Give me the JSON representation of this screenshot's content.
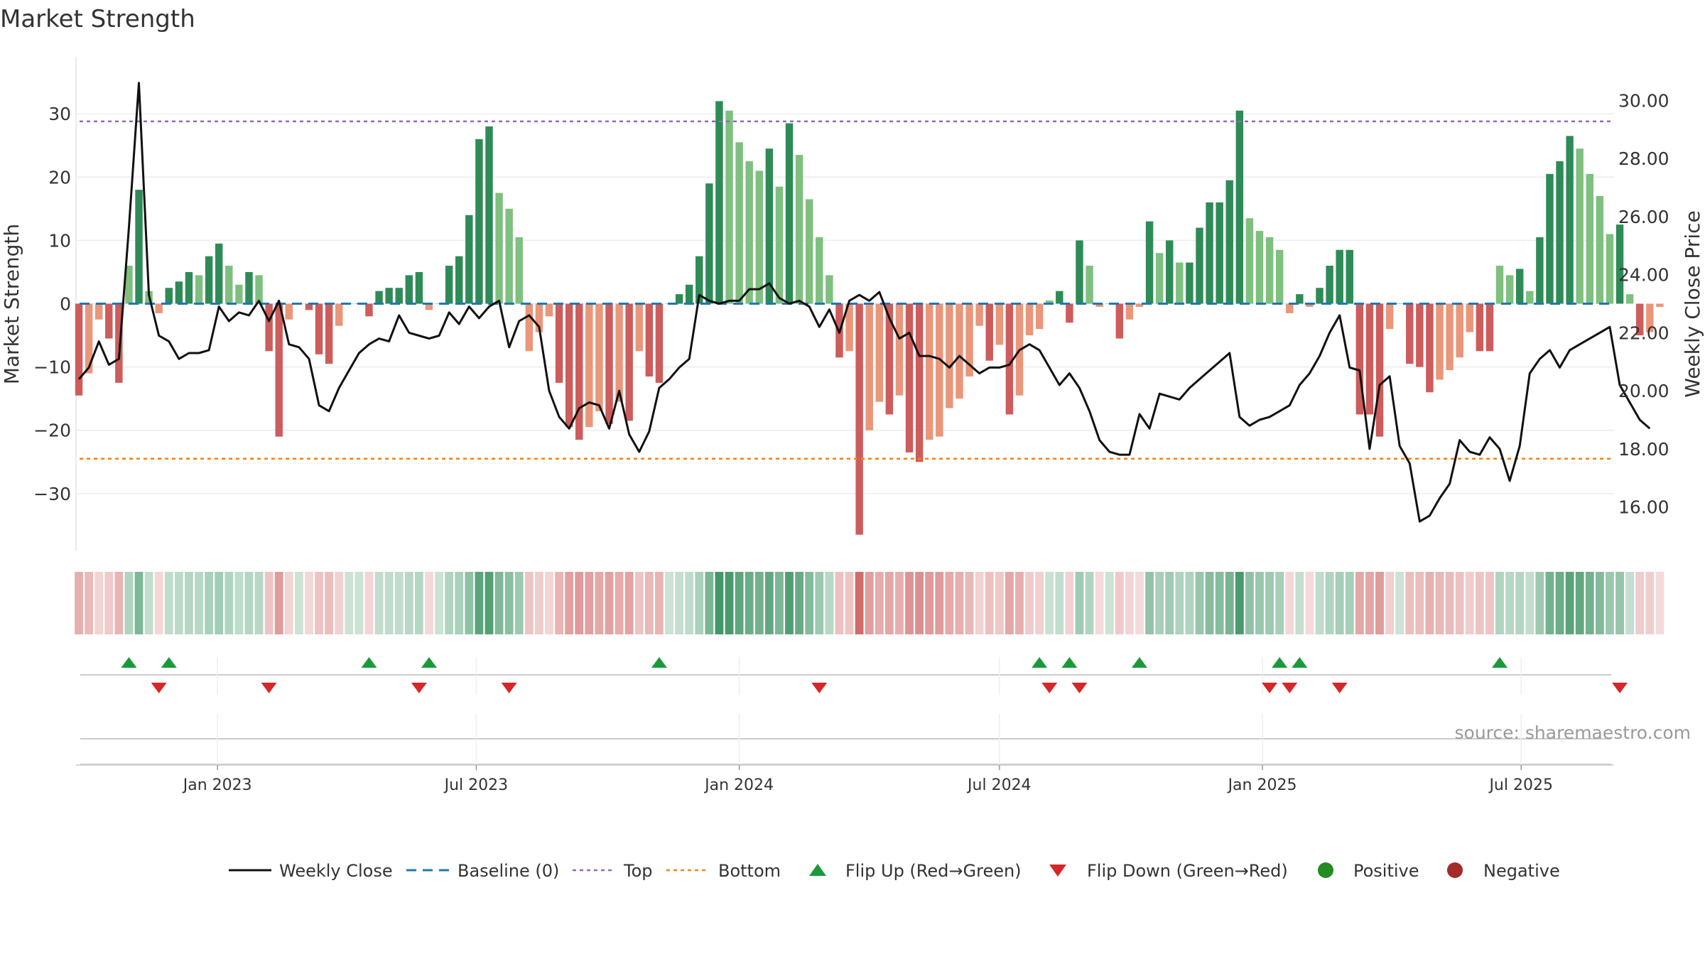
{
  "chart_data": {
    "type": "bar",
    "title": "Market Strength",
    "ylabel_left": "Market Strength",
    "ylabel_right": "Weekly Close Price",
    "ylim_left": [
      -39,
      39
    ],
    "ylim_right": [
      14.5,
      31.5
    ],
    "yticks_left": [
      "30",
      "20",
      "10",
      "0",
      "−10",
      "−20",
      "−30"
    ],
    "ytick_values_left": [
      30,
      20,
      10,
      0,
      -10,
      -20,
      -30
    ],
    "yticks_right": [
      "30.00",
      "28.00",
      "26.00",
      "24.00",
      "22.00",
      "20.00",
      "18.00",
      "16.00"
    ],
    "ytick_values_right": [
      30,
      28,
      26,
      24,
      22,
      20,
      18,
      16
    ],
    "x_start": "2022-09-26",
    "x_range_days": [
      -2,
      1074
    ],
    "week_step_days": 7,
    "x_tick_labels": [
      "Jan 2023",
      "Jul 2023",
      "Jan 2024",
      "Jul 2024",
      "Jan 2025",
      "Jul 2025"
    ],
    "x_tick_dates": [
      "2023-01-01",
      "2023-07-01",
      "2024-01-01",
      "2024-07-01",
      "2025-01-01",
      "2025-07-01"
    ],
    "reference_lines": {
      "baseline": 0,
      "top": 28.8,
      "bottom": -24.5
    },
    "strength": [
      -14.5,
      -11,
      -2.5,
      -5.5,
      -12.5,
      6,
      18,
      2,
      -1.5,
      2.5,
      3.5,
      5,
      4.5,
      7.5,
      9.5,
      6,
      3,
      5,
      4.5,
      -7.5,
      -21,
      -2.5,
      0,
      -1,
      -8,
      -9.5,
      -3.5,
      0,
      0,
      -2,
      2,
      2.5,
      2.5,
      4.5,
      5,
      -1,
      0,
      6,
      7.5,
      14,
      26,
      28,
      17.5,
      15,
      10.5,
      -7.5,
      -4.5,
      -2,
      -12.5,
      -19.5,
      -21.5,
      -19.5,
      -17,
      -19,
      -15.5,
      -18.5,
      -7.5,
      -11.5,
      -12.5,
      0,
      1.5,
      3,
      7.5,
      19,
      32,
      30.5,
      25.5,
      22.5,
      21,
      24.5,
      18.5,
      28.5,
      23.5,
      16.5,
      10.5,
      4.5,
      -8.5,
      -7.5,
      -36.5,
      -20,
      -15.5,
      -17.5,
      -14.5,
      -23.5,
      -25,
      -21.5,
      -21,
      -16.5,
      -15,
      -11.5,
      -3.5,
      -9,
      -6.5,
      -17.5,
      -14.5,
      -5,
      -4,
      0.5,
      2,
      -3,
      10,
      6,
      -0.5,
      0,
      -5.5,
      -2.5,
      -0.5,
      13,
      8,
      10,
      6.5,
      6.5,
      12,
      16,
      16,
      19.5,
      30.5,
      13.5,
      11.5,
      10.5,
      8.5,
      -1.5,
      1.5,
      -0.5,
      2.5,
      6,
      8.5,
      8.5,
      -17.5,
      -17.5,
      -21,
      -4,
      0,
      -9.5,
      -10,
      -14,
      -12,
      -10.5,
      -8.5,
      -4.5,
      -7.5,
      -7.5,
      6,
      4.5,
      5.5,
      2,
      10.5,
      20.5,
      22.5,
      26.5,
      24.5,
      20.5,
      17,
      11,
      12.5,
      1.5,
      -5,
      -4.5,
      -0.5
    ],
    "weekly_close": [
      20.4,
      20.8,
      21.7,
      20.9,
      21.1,
      25.6,
      30.6,
      23.3,
      21.9,
      21.7,
      21.1,
      21.3,
      21.3,
      21.4,
      22.9,
      22.4,
      22.7,
      22.6,
      23.1,
      22.4,
      23.1,
      21.6,
      21.5,
      21.1,
      19.5,
      19.3,
      20.1,
      20.7,
      21.3,
      21.6,
      21.8,
      21.7,
      22.6,
      22.0,
      21.9,
      21.8,
      21.9,
      22.7,
      22.3,
      22.9,
      22.5,
      22.9,
      23.1,
      21.5,
      22.4,
      22.6,
      22.2,
      20.0,
      19.1,
      18.7,
      19.4,
      19.6,
      19.5,
      18.7,
      20.0,
      18.5,
      17.9,
      18.6,
      20.1,
      20.4,
      20.8,
      21.1,
      23.3,
      23.1,
      23.0,
      23.1,
      23.1,
      23.5,
      23.5,
      23.7,
      23.2,
      23.0,
      23.1,
      22.9,
      22.2,
      22.8,
      22.0,
      23.1,
      23.3,
      23.1,
      23.4,
      22.5,
      21.8,
      22.0,
      21.2,
      21.2,
      21.1,
      20.8,
      21.2,
      20.9,
      20.6,
      20.8,
      20.8,
      20.9,
      21.4,
      21.6,
      21.4,
      20.8,
      20.2,
      20.6,
      20.1,
      19.3,
      18.3,
      17.9,
      17.8,
      17.8,
      19.2,
      18.7,
      19.9,
      19.8,
      19.7,
      20.1,
      20.4,
      20.7,
      21.0,
      21.3,
      19.1,
      18.8,
      19.0,
      19.1,
      19.3,
      19.5,
      20.2,
      20.6,
      21.2,
      22.0,
      22.6,
      20.8,
      20.7,
      18.0,
      20.2,
      20.5,
      18.1,
      17.5,
      15.5,
      15.7,
      16.3,
      16.8,
      18.3,
      17.9,
      17.8,
      18.4,
      18.0,
      16.9,
      18.1,
      20.6,
      21.1,
      21.4,
      20.8,
      21.4,
      21.6,
      21.8,
      22.0,
      22.2,
      20.2,
      19.6,
      19.0,
      18.7
    ]
  },
  "markers": {
    "flip_up_weeks": [
      5,
      9,
      29,
      35,
      58,
      96,
      99,
      106,
      120,
      122,
      142
    ],
    "flip_down_weeks": [
      8,
      19,
      34,
      43,
      74,
      97,
      100,
      119,
      121,
      126,
      154
    ]
  },
  "colors": {
    "pos_strong": "#2e8b57",
    "pos_weak": "#7fbf7f",
    "neg_strong": "#cd5c5c",
    "neg_weak": "#e9967a",
    "close_line": "#111111",
    "baseline": "#1f77b4",
    "top": "#9467bd",
    "bottom": "#ff7f0e",
    "flip_up": "#1a9a3a",
    "flip_down": "#d62728",
    "positive_dot": "#228b22",
    "negative_dot": "#a52a2a"
  },
  "legend": {
    "weekly_close": "Weekly Close",
    "baseline": "Baseline (0)",
    "top": "Top",
    "bottom": "Bottom",
    "flip_up": "Flip Up (Red→Green)",
    "flip_down": "Flip Down (Green→Red)",
    "positive": "Positive",
    "negative": "Negative"
  },
  "source": "source: sharemaestro.com"
}
